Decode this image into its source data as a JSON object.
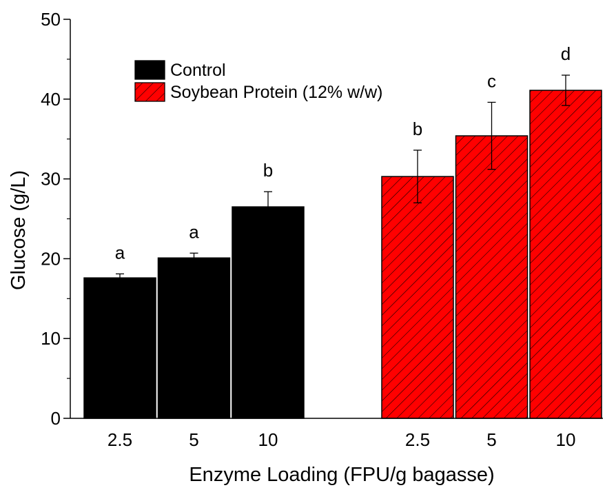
{
  "chart_data": {
    "type": "bar",
    "title": "",
    "xlabel": "Enzyme Loading (FPU/g bagasse)",
    "ylabel": "Glucose (g/L)",
    "ylim": [
      0,
      50
    ],
    "yticks": [
      0,
      10,
      20,
      30,
      40,
      50
    ],
    "grid": false,
    "legend_position": "top-left",
    "categories": [
      "2.5",
      "5",
      "10"
    ],
    "series": [
      {
        "name": "Control",
        "color": "#000000",
        "pattern": "solid",
        "values": [
          17.6,
          20.1,
          26.5
        ],
        "errors": [
          0.5,
          0.6,
          1.9
        ],
        "letters": [
          "a",
          "a",
          "b"
        ]
      },
      {
        "name": "Soybean Protein (12% w/w)",
        "color": "#ff0000",
        "pattern": "diagonal-hatch",
        "values": [
          30.3,
          35.4,
          41.1
        ],
        "errors": [
          3.3,
          4.2,
          1.9
        ],
        "letters": [
          "b",
          "c",
          "d"
        ]
      }
    ]
  }
}
